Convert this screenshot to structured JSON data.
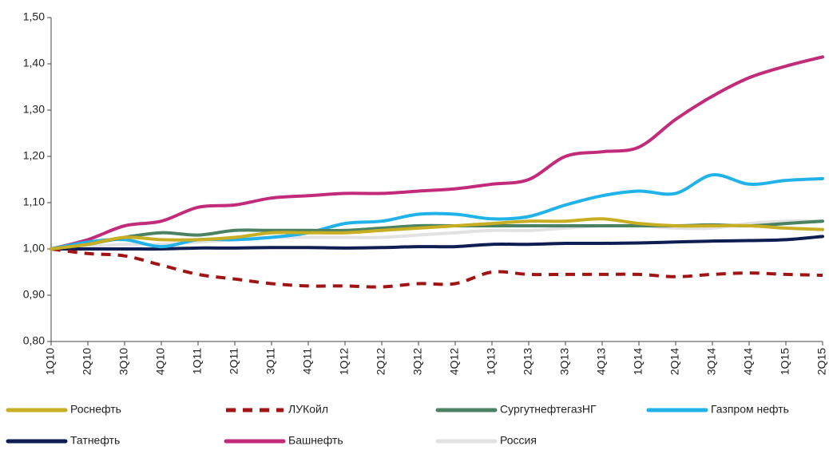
{
  "chart_data": {
    "type": "line",
    "categories": [
      "1Q10",
      "2Q10",
      "3Q10",
      "4Q10",
      "1Q11",
      "2Q11",
      "3Q11",
      "4Q11",
      "1Q12",
      "2Q12",
      "3Q12",
      "4Q12",
      "1Q13",
      "2Q13",
      "3Q13",
      "4Q13",
      "1Q14",
      "2Q14",
      "3Q14",
      "4Q14",
      "1Q15",
      "2Q15"
    ],
    "ylim": [
      0.8,
      1.5
    ],
    "yticks": [
      {
        "value": 0.8,
        "label": "0,80"
      },
      {
        "value": 0.9,
        "label": "0,90"
      },
      {
        "value": 1.0,
        "label": "1,00"
      },
      {
        "value": 1.1,
        "label": "1,10"
      },
      {
        "value": 1.2,
        "label": "1,20"
      },
      {
        "value": 1.3,
        "label": "1,30"
      },
      {
        "value": 1.4,
        "label": "1,40"
      },
      {
        "value": 1.5,
        "label": "1,50"
      }
    ],
    "series": [
      {
        "name": "Роснефть",
        "color": "#c8ae22",
        "values": [
          1.0,
          1.01,
          1.025,
          1.02,
          1.02,
          1.025,
          1.035,
          1.035,
          1.035,
          1.04,
          1.045,
          1.05,
          1.055,
          1.06,
          1.06,
          1.065,
          1.055,
          1.05,
          1.05,
          1.05,
          1.045,
          1.042
        ]
      },
      {
        "name": "ЛУКойл",
        "color": "#a01414",
        "style": "dashed",
        "values": [
          1.0,
          0.99,
          0.985,
          0.965,
          0.945,
          0.935,
          0.925,
          0.92,
          0.92,
          0.918,
          0.925,
          0.925,
          0.95,
          0.945,
          0.945,
          0.945,
          0.945,
          0.94,
          0.945,
          0.948,
          0.945,
          0.943
        ]
      },
      {
        "name": "СургутнефтегазНГ",
        "color": "#4a8262",
        "values": [
          1.0,
          1.01,
          1.025,
          1.035,
          1.03,
          1.04,
          1.04,
          1.04,
          1.04,
          1.045,
          1.05,
          1.05,
          1.05,
          1.05,
          1.05,
          1.05,
          1.05,
          1.05,
          1.052,
          1.05,
          1.055,
          1.06
        ]
      },
      {
        "name": "Газпром нефть",
        "color": "#22b2ea",
        "values": [
          1.0,
          1.015,
          1.02,
          1.005,
          1.02,
          1.02,
          1.025,
          1.035,
          1.055,
          1.06,
          1.075,
          1.075,
          1.065,
          1.07,
          1.095,
          1.115,
          1.125,
          1.12,
          1.16,
          1.14,
          1.148,
          1.152
        ]
      },
      {
        "name": "Татнефть",
        "color": "#0e1e52",
        "values": [
          1.0,
          1.0,
          1.0,
          1.0,
          1.002,
          1.002,
          1.003,
          1.003,
          1.002,
          1.003,
          1.005,
          1.005,
          1.01,
          1.01,
          1.012,
          1.012,
          1.013,
          1.015,
          1.017,
          1.018,
          1.02,
          1.027
        ]
      },
      {
        "name": "Башнефть",
        "color": "#c22a7a",
        "values": [
          1.0,
          1.02,
          1.05,
          1.06,
          1.09,
          1.095,
          1.11,
          1.115,
          1.12,
          1.12,
          1.125,
          1.13,
          1.14,
          1.15,
          1.2,
          1.21,
          1.22,
          1.28,
          1.33,
          1.37,
          1.395,
          1.415
        ]
      },
      {
        "name": "Россия",
        "color": "#e2e2e2",
        "values": [
          1.0,
          1.005,
          1.01,
          1.01,
          1.015,
          1.02,
          1.025,
          1.025,
          1.025,
          1.025,
          1.03,
          1.035,
          1.04,
          1.04,
          1.045,
          1.05,
          1.05,
          1.045,
          1.045,
          1.055,
          1.06,
          1.06
        ]
      }
    ]
  }
}
